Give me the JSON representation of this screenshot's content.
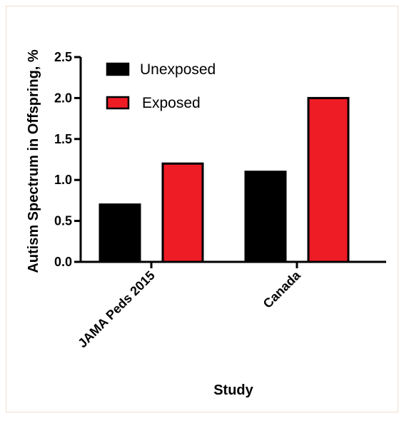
{
  "chart_data": {
    "type": "bar",
    "title": "",
    "xlabel": "Study",
    "ylabel": "Autism  Spectrum in Offspring, %",
    "categories": [
      "JAMA Peds 2015",
      "Canada"
    ],
    "series": [
      {
        "name": "Unexposed",
        "values": [
          0.7,
          1.1
        ],
        "color": "#000000"
      },
      {
        "name": "Exposed",
        "values": [
          1.2,
          2.0
        ],
        "color": "#ee1c25"
      }
    ],
    "ylim": [
      0,
      2.5
    ],
    "yticks": [
      "0.0",
      "0.5",
      "1.0",
      "1.5",
      "2.0",
      "2.5"
    ],
    "grid": false,
    "legend_position": "top-left"
  }
}
